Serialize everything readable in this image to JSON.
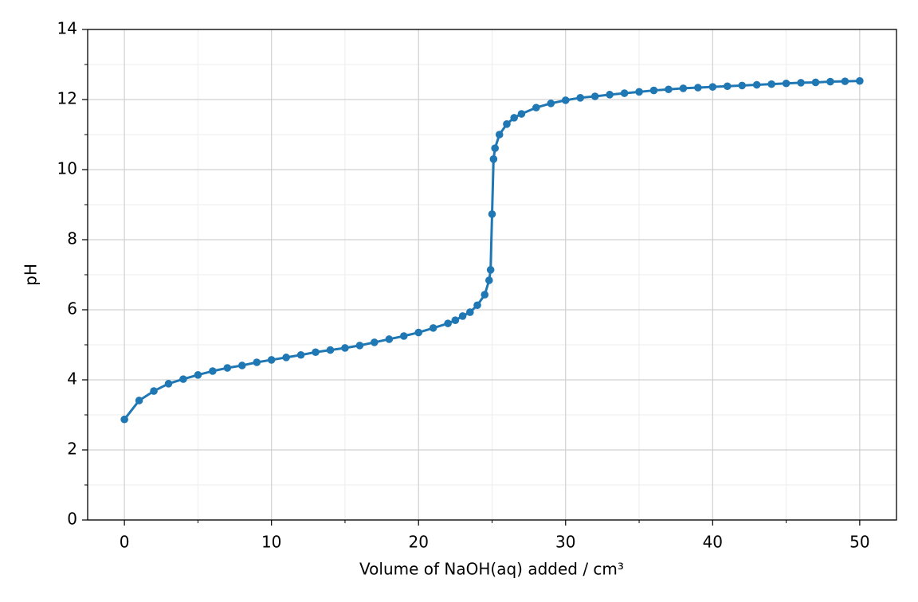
{
  "chart_data": {
    "type": "line",
    "x_label": "Volume of NaOH(aq) added / cm³",
    "y_label": "pH",
    "x": [
      0,
      1,
      2,
      3,
      4,
      5,
      6,
      7,
      8,
      9,
      10,
      11,
      12,
      13,
      14,
      15,
      16,
      17,
      18,
      19,
      20,
      21,
      22,
      22.5,
      23,
      23.5,
      24,
      24.5,
      24.8,
      24.9,
      25,
      25.1,
      25.2,
      25.5,
      26,
      26.5,
      27,
      28,
      29,
      30,
      31,
      32,
      33,
      34,
      35,
      36,
      37,
      38,
      39,
      40,
      41,
      42,
      43,
      44,
      45,
      46,
      47,
      48,
      49,
      50
    ],
    "series": [
      {
        "color": "#1f77b4",
        "values": [
          2.87,
          3.41,
          3.68,
          3.89,
          4.02,
          4.14,
          4.25,
          4.34,
          4.41,
          4.5,
          4.57,
          4.64,
          4.71,
          4.79,
          4.85,
          4.91,
          4.98,
          5.07,
          5.16,
          5.25,
          5.35,
          5.48,
          5.61,
          5.7,
          5.82,
          5.93,
          6.13,
          6.43,
          6.84,
          7.14,
          8.73,
          10.3,
          10.61,
          11.0,
          11.3,
          11.48,
          11.59,
          11.77,
          11.89,
          11.98,
          12.05,
          12.09,
          12.14,
          12.18,
          12.22,
          12.26,
          12.29,
          12.32,
          12.34,
          12.36,
          12.38,
          12.4,
          12.42,
          12.44,
          12.46,
          12.48,
          12.49,
          12.51,
          12.52,
          12.53
        ]
      }
    ],
    "xlim": [
      -2.5,
      52.5
    ],
    "ylim": [
      0,
      14
    ],
    "xticks": [
      0,
      10,
      20,
      30,
      40,
      50
    ],
    "yticks": [
      0,
      2,
      4,
      6,
      8,
      10,
      12,
      14
    ],
    "xminorticks": [
      5,
      15,
      25,
      35,
      45
    ],
    "yminorticks": [
      1,
      3,
      5,
      7,
      9,
      11,
      13
    ],
    "grid": true,
    "markers": true
  }
}
